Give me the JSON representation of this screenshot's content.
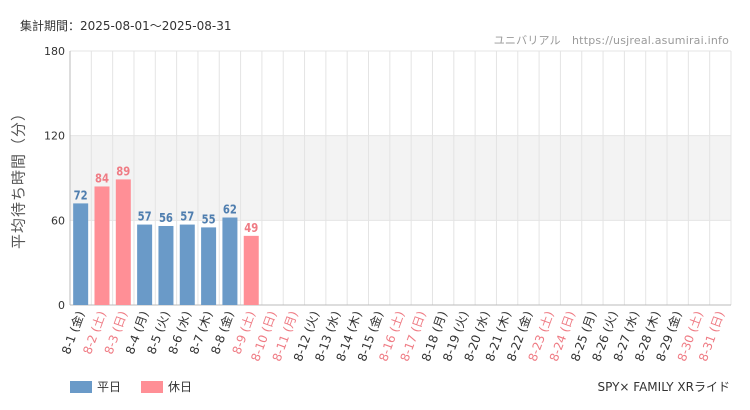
{
  "header": {
    "period_label": "集計期間：2025-08-01～2025-08-31",
    "credit": "ユニバリアル　https://usjreal.asumirai.info"
  },
  "footer": {
    "attraction": "SPY× FAMILY XRライド"
  },
  "legend": [
    {
      "label": "平日",
      "color": "#6a9ac8"
    },
    {
      "label": "休日",
      "color": "#ff8f96"
    }
  ],
  "colors": {
    "weekday_bar": "#6a9ac8",
    "holiday_bar": "#ff8f96",
    "weekday_text": "#4f7eaf",
    "holiday_text": "#ef7b84",
    "axis_text": "#333333",
    "band": "#f3f3f3",
    "grid": "#e4e4e4"
  },
  "chart_data": {
    "type": "bar",
    "ylabel": "平均待ち時間（分）",
    "ylim": [
      0,
      180
    ],
    "yticks": [
      0,
      60,
      120,
      180
    ],
    "shaded_band": [
      60,
      120
    ],
    "grid": true,
    "legend_position": "bottom-left",
    "categories": [
      "8-1 (金)",
      "8-2 (土)",
      "8-3 (日)",
      "8-4 (月)",
      "8-5 (火)",
      "8-6 (水)",
      "8-7 (木)",
      "8-8 (金)",
      "8-9 (土)",
      "8-10 (日)",
      "8-11 (月)",
      "8-12 (火)",
      "8-13 (水)",
      "8-14 (木)",
      "8-15 (金)",
      "8-16 (土)",
      "8-17 (日)",
      "8-18 (月)",
      "8-19 (火)",
      "8-20 (水)",
      "8-21 (木)",
      "8-22 (金)",
      "8-23 (土)",
      "8-24 (日)",
      "8-25 (月)",
      "8-26 (火)",
      "8-27 (水)",
      "8-28 (木)",
      "8-29 (金)",
      "8-30 (土)",
      "8-31 (日)"
    ],
    "holiday": [
      false,
      true,
      true,
      false,
      false,
      false,
      false,
      false,
      true,
      true,
      true,
      false,
      false,
      false,
      false,
      true,
      true,
      false,
      false,
      false,
      false,
      false,
      true,
      true,
      false,
      false,
      false,
      false,
      false,
      true,
      true
    ],
    "values": [
      72,
      84,
      89,
      57,
      56,
      57,
      55,
      62,
      49,
      null,
      null,
      null,
      null,
      null,
      null,
      null,
      null,
      null,
      null,
      null,
      null,
      null,
      null,
      null,
      null,
      null,
      null,
      null,
      null,
      null,
      null
    ]
  }
}
